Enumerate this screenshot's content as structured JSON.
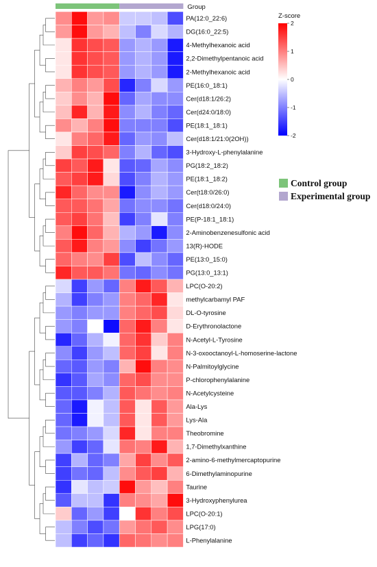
{
  "chart_data": {
    "type": "heatmap",
    "group_header": "Group",
    "groups": [
      {
        "name": "Control group",
        "color": "#7dc47a",
        "columns": 4
      },
      {
        "name": "Experimental group",
        "color": "#b3a7cf",
        "columns": 4
      }
    ],
    "colorbar": {
      "title": "Z-score",
      "min": -2,
      "max": 2,
      "ticks": [
        "2",
        "1",
        "0",
        "-1",
        "-2"
      ],
      "tick_values": [
        2,
        1,
        0,
        -1,
        -2
      ],
      "colors": {
        "low": "#0000ff",
        "mid": "#ffffff",
        "high": "#ff0000"
      }
    },
    "rows": [
      {
        "name": "PA(12:0_22:6)",
        "values": [
          0.9,
          1.9,
          0.8,
          0.9,
          -0.4,
          -0.4,
          -0.5,
          -1.4
        ]
      },
      {
        "name": "DG(16:0_22:5)",
        "values": [
          0.8,
          1.9,
          0.8,
          0.6,
          -0.5,
          -1.0,
          -0.3,
          -0.6
        ]
      },
      {
        "name": "4-Methylhexanoic acid",
        "values": [
          0.2,
          1.6,
          1.4,
          1.3,
          -0.8,
          -0.6,
          -0.8,
          -1.8
        ]
      },
      {
        "name": "2,2-Dimethylpentanoic acid",
        "values": [
          0.2,
          1.6,
          1.4,
          1.3,
          -0.8,
          -0.6,
          -0.8,
          -1.8
        ]
      },
      {
        "name": "2-Methylhexanoic acid",
        "values": [
          0.2,
          1.6,
          1.4,
          1.3,
          -0.8,
          -0.6,
          -0.8,
          -1.8
        ]
      },
      {
        "name": "PE(16:0_18:1)",
        "values": [
          0.6,
          1.0,
          0.8,
          1.4,
          -1.7,
          -1.0,
          -0.3,
          -0.8
        ]
      },
      {
        "name": "Cer(d18:1/26:2)",
        "values": [
          0.4,
          0.9,
          0.6,
          1.9,
          -1.2,
          -0.7,
          -0.9,
          -0.9
        ]
      },
      {
        "name": "Cer(d24:0/18:0)",
        "values": [
          0.5,
          1.7,
          0.6,
          1.8,
          -0.9,
          -0.6,
          -1.0,
          -1.2
        ]
      },
      {
        "name": "PE(18:1_18:1)",
        "values": [
          0.9,
          0.6,
          1.0,
          1.9,
          -1.0,
          -1.0,
          -1.0,
          -1.4
        ]
      },
      {
        "name": "Cer(d18:1/21:0(2OH))",
        "values": [
          0.2,
          1.0,
          1.2,
          1.8,
          -1.2,
          -0.8,
          -0.9,
          -0.5
        ]
      },
      {
        "name": "3-Hydroxy-L-phenylalanine",
        "values": [
          0.4,
          1.5,
          1.4,
          1.2,
          -1.0,
          -0.6,
          -1.2,
          -1.4
        ]
      },
      {
        "name": "PG(18:2_18:2)",
        "values": [
          1.5,
          1.3,
          1.8,
          0.2,
          -1.3,
          -1.2,
          -0.7,
          -0.9
        ]
      },
      {
        "name": "PE(18:1_18:2)",
        "values": [
          1.3,
          1.5,
          1.8,
          0.3,
          -1.4,
          -1.0,
          -0.6,
          -0.8
        ]
      },
      {
        "name": "Cer(t18:0/26:0)",
        "values": [
          1.7,
          1.2,
          0.9,
          0.9,
          -1.8,
          -0.9,
          -0.6,
          -0.8
        ]
      },
      {
        "name": "Cer(d18:0/24:0)",
        "values": [
          1.3,
          1.3,
          1.1,
          0.7,
          -1.1,
          -0.9,
          -0.9,
          -1.1
        ]
      },
      {
        "name": "PE(P-18:1_18:1)",
        "values": [
          1.3,
          1.5,
          1.1,
          0.5,
          -1.5,
          -1.0,
          -0.2,
          -1.0
        ]
      },
      {
        "name": "2-Aminobenzenesulfonic acid",
        "values": [
          1.0,
          1.9,
          1.2,
          0.6,
          -0.6,
          -0.8,
          -1.8,
          -0.9
        ]
      },
      {
        "name": "13(R)-HODE",
        "values": [
          1.3,
          1.8,
          1.0,
          0.8,
          -0.9,
          -1.5,
          -1.1,
          -0.8
        ]
      },
      {
        "name": "PE(13:0_15:0)",
        "values": [
          1.2,
          1.0,
          0.9,
          1.5,
          -1.4,
          -0.5,
          -0.9,
          -1.2
        ]
      },
      {
        "name": "PG(13:0_13:1)",
        "values": [
          1.7,
          1.3,
          1.3,
          1.1,
          -1.1,
          -1.2,
          -0.9,
          -1.1
        ]
      },
      {
        "name": "LPC(O-20:2)",
        "values": [
          -0.3,
          -1.5,
          -0.8,
          -1.2,
          1.0,
          1.8,
          1.3,
          0.6
        ]
      },
      {
        "name": "methylcarbamyl PAF",
        "values": [
          -0.6,
          -1.5,
          -1.0,
          -0.8,
          1.0,
          1.2,
          1.7,
          0.2
        ]
      },
      {
        "name": "DL-O-tyrosine",
        "values": [
          -0.8,
          -1.0,
          -0.8,
          -0.8,
          1.0,
          1.2,
          1.4,
          0.3
        ]
      },
      {
        "name": "D-Erythronolactone",
        "values": [
          -0.8,
          -1.0,
          0.0,
          -1.9,
          1.2,
          1.8,
          1.0,
          0.2
        ]
      },
      {
        "name": "N-Acetyl-L-Tyrosine",
        "values": [
          -1.7,
          -1.2,
          -0.6,
          -0.1,
          1.2,
          1.6,
          0.4,
          1.0
        ]
      },
      {
        "name": "N-3-oxooctanoyl-L-homoserine-lactone",
        "values": [
          -0.9,
          -1.5,
          -0.8,
          -0.5,
          1.2,
          1.5,
          0.2,
          1.0
        ]
      },
      {
        "name": "N-Palmitoylglycine",
        "values": [
          -1.2,
          -1.3,
          -0.8,
          -1.0,
          0.6,
          1.9,
          1.0,
          0.9
        ]
      },
      {
        "name": "P-chlorophenylalanine",
        "values": [
          -1.6,
          -1.3,
          -0.7,
          -0.9,
          1.2,
          1.4,
          0.9,
          0.9
        ]
      },
      {
        "name": "N-Acetylcysteine",
        "values": [
          -1.3,
          -1.3,
          -1.0,
          -0.6,
          1.3,
          1.1,
          0.9,
          1.0
        ]
      },
      {
        "name": "Ala-Lys",
        "values": [
          -1.2,
          -1.8,
          -0.1,
          -0.5,
          1.3,
          0.2,
          1.3,
          0.8
        ]
      },
      {
        "name": "Lys-Ala",
        "values": [
          -1.2,
          -1.8,
          -0.1,
          -0.5,
          1.3,
          0.2,
          1.3,
          0.8
        ]
      },
      {
        "name": "Theobromine",
        "values": [
          -1.1,
          -1.0,
          -0.8,
          -0.3,
          1.7,
          0.2,
          1.0,
          1.0
        ]
      },
      {
        "name": "1,7-Dimethylxanthine",
        "values": [
          -0.8,
          -1.5,
          -1.2,
          -0.2,
          1.1,
          1.0,
          1.8,
          0.6
        ]
      },
      {
        "name": "2-amino-6-methylmercaptopurine",
        "values": [
          -1.5,
          -0.6,
          -1.2,
          -1.0,
          0.7,
          1.5,
          0.9,
          1.3
        ]
      },
      {
        "name": "6-Dimethylaminopurine",
        "values": [
          -1.5,
          -1.1,
          -1.2,
          -0.5,
          0.9,
          1.3,
          1.5,
          0.6
        ]
      },
      {
        "name": "Taurine",
        "values": [
          -1.6,
          -0.2,
          -0.5,
          -0.4,
          1.9,
          0.8,
          0.5,
          1.0
        ]
      },
      {
        "name": "3-Hydroxyphenylurea",
        "values": [
          -1.3,
          -0.5,
          -0.5,
          -1.6,
          1.0,
          0.9,
          0.7,
          1.9
        ]
      },
      {
        "name": "LPC(O-20:1)",
        "values": [
          0.4,
          -1.2,
          -0.8,
          -1.5,
          0.0,
          1.6,
          1.0,
          1.4
        ]
      },
      {
        "name": "LPG(17:0)",
        "values": [
          -0.5,
          -1.0,
          -1.4,
          -1.1,
          0.8,
          1.1,
          1.3,
          0.9
        ]
      },
      {
        "name": "L-Phenylalanine",
        "values": [
          -0.5,
          -1.5,
          -1.2,
          -1.6,
          1.2,
          1.1,
          0.9,
          1.0
        ]
      }
    ]
  }
}
